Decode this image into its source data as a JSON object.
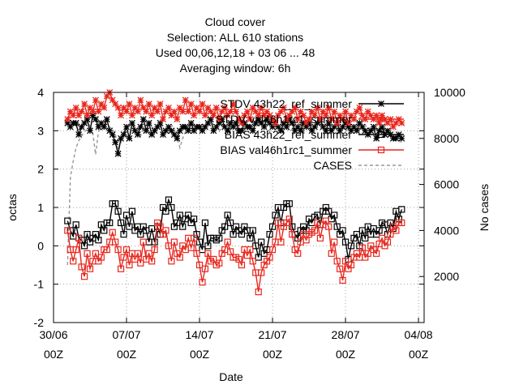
{
  "chart_data": {
    "type": "line",
    "title_lines": [
      "Cloud cover",
      "Selection: ALL    610 stations",
      "Used  00,06,12,18  + 03 06 ... 48",
      "Averaging window:  6h"
    ],
    "xlabel": "Date",
    "ylabel": "octas",
    "y2label": "No cases",
    "xlim": [
      0,
      33
    ],
    "ylim": [
      -2,
      4
    ],
    "y2lim": [
      0,
      10000
    ],
    "x_ticks": [
      {
        "value": 0,
        "line1": "30/06",
        "line2": "00Z"
      },
      {
        "value": 6.5,
        "line1": "07/07",
        "line2": "00Z"
      },
      {
        "value": 13,
        "line1": "14/07",
        "line2": "00Z"
      },
      {
        "value": 19.5,
        "line1": "21/07",
        "line2": "00Z"
      },
      {
        "value": 26,
        "line1": "28/07",
        "line2": "00Z"
      },
      {
        "value": 32.5,
        "line1": "04/08",
        "line2": "00Z"
      }
    ],
    "y_ticks": [
      "-2",
      "-1",
      "0",
      "1",
      "2",
      "3",
      "4"
    ],
    "y2_ticks": [
      "2000",
      "4000",
      "6000",
      "8000",
      "10000"
    ],
    "grid": true,
    "legend_position": "top-right",
    "x_day": [
      1.25,
      1.5,
      1.75,
      2.0,
      2.25,
      2.5,
      2.75,
      3.0,
      3.25,
      3.5,
      3.75,
      4.0,
      4.25,
      4.5,
      4.75,
      5.0,
      5.25,
      5.5,
      5.75,
      6.0,
      6.25,
      6.5,
      6.75,
      7.0,
      7.25,
      7.5,
      7.75,
      8.0,
      8.25,
      8.5,
      8.75,
      9.0,
      9.25,
      9.5,
      9.75,
      10.0,
      10.25,
      10.5,
      10.75,
      11.0,
      11.25,
      11.5,
      11.75,
      12.0,
      12.25,
      12.5,
      12.75,
      13.0,
      13.25,
      13.5,
      13.75,
      14.0,
      14.25,
      14.5,
      14.75,
      15.0,
      15.25,
      15.5,
      15.75,
      16.0,
      16.25,
      16.5,
      16.75,
      17.0,
      17.25,
      17.5,
      17.75,
      18.0,
      18.25,
      18.5,
      18.75,
      19.0,
      19.25,
      19.5,
      19.75,
      20.0,
      20.25,
      20.5,
      20.75,
      21.0,
      21.25,
      21.5,
      21.75,
      22.0,
      22.25,
      22.5,
      22.75,
      23.0,
      23.25,
      23.5,
      23.75,
      24.0,
      24.25,
      24.5,
      24.75,
      25.0,
      25.25,
      25.5,
      25.75,
      26.0,
      26.25,
      26.5,
      26.75,
      27.0,
      27.25,
      27.5,
      27.75,
      28.0,
      28.25,
      28.5,
      28.75,
      29.0,
      29.25,
      29.5,
      29.75,
      30.0,
      30.25,
      30.5,
      30.75,
      31.0
    ],
    "series": [
      {
        "name": "STDV 43h22_ref_summer",
        "color": "#000000",
        "marker": "star",
        "values": [
          3.2,
          3.1,
          3.2,
          3.2,
          2.9,
          3.1,
          3.2,
          3.3,
          3.0,
          3.4,
          3.3,
          3.1,
          3.2,
          3.1,
          3.3,
          3.0,
          2.9,
          2.7,
          2.4,
          2.8,
          2.9,
          3.1,
          2.8,
          3.2,
          3.0,
          2.9,
          3.1,
          3.3,
          3.0,
          3.2,
          2.9,
          3.0,
          3.1,
          3.2,
          2.9,
          3.0,
          3.1,
          3.0,
          2.9,
          2.8,
          3.0,
          3.1,
          3.1,
          3.0,
          3.2,
          3.0,
          3.1,
          3.1,
          3.0,
          3.1,
          3.2,
          3.3,
          3.0,
          3.1,
          3.2,
          3.3,
          3.1,
          3.0,
          3.2,
          3.1,
          3.2,
          3.0,
          3.0,
          3.2,
          3.1,
          3.1,
          3.0,
          3.2,
          3.3,
          3.2,
          3.1,
          3.3,
          3.2,
          3.1,
          3.2,
          3.1,
          3.0,
          3.2,
          3.1,
          3.3,
          3.2,
          3.0,
          3.1,
          3.0,
          3.2,
          3.1,
          3.2,
          3.0,
          3.1,
          3.2,
          3.3,
          3.1,
          3.0,
          3.2,
          3.0,
          3.1,
          3.2,
          3.0,
          3.1,
          3.2,
          3.1,
          3.0,
          3.1,
          3.0,
          3.2,
          3.1,
          3.0,
          2.9,
          3.0,
          3.1,
          2.8,
          3.0,
          3.1,
          2.9,
          3.0,
          2.9,
          2.8,
          2.8,
          2.9,
          2.8
        ]
      },
      {
        "name": "STDV val46h1rc1_summer",
        "color": "#e8261d",
        "marker": "star",
        "values": [
          3.3,
          3.5,
          3.4,
          3.6,
          3.4,
          3.5,
          3.7,
          3.4,
          3.6,
          3.5,
          3.8,
          3.5,
          3.7,
          3.6,
          3.9,
          4.0,
          3.8,
          3.7,
          3.6,
          3.4,
          3.6,
          3.5,
          3.7,
          3.4,
          3.6,
          3.5,
          3.8,
          3.6,
          3.5,
          3.7,
          3.4,
          3.6,
          3.5,
          3.7,
          3.3,
          3.5,
          3.6,
          3.4,
          3.5,
          3.3,
          3.6,
          3.5,
          3.8,
          3.5,
          3.7,
          3.4,
          3.6,
          3.5,
          3.7,
          3.4,
          3.6,
          3.5,
          3.4,
          3.6,
          3.3,
          3.5,
          3.6,
          3.4,
          3.5,
          3.7,
          3.5,
          3.3,
          3.2,
          3.4,
          3.5,
          3.3,
          3.6,
          3.5,
          3.4,
          3.6,
          3.4,
          3.5,
          3.4,
          3.3,
          3.2,
          3.4,
          3.5,
          3.6,
          3.3,
          3.4,
          3.5,
          3.6,
          3.3,
          3.5,
          3.4,
          3.2,
          3.3,
          3.5,
          3.4,
          3.6,
          3.3,
          3.5,
          3.4,
          3.6,
          3.3,
          3.5,
          3.2,
          3.4,
          3.3,
          3.5,
          3.2,
          3.4,
          3.3,
          3.5,
          3.6,
          3.4,
          3.3,
          3.5,
          3.4,
          3.3,
          3.4,
          3.2,
          3.4,
          3.3,
          3.2,
          3.3,
          3.1,
          3.2,
          3.3,
          3.2
        ]
      },
      {
        "name": "BIAS 43h22_ref_summer",
        "color": "#000000",
        "marker": "square",
        "values": [
          0.65,
          0.4,
          0.25,
          0.55,
          0.2,
          0.15,
          0.0,
          0.3,
          0.1,
          0.2,
          0.3,
          0.15,
          0.55,
          0.4,
          0.6,
          0.6,
          1.1,
          1.1,
          0.9,
          0.6,
          0.3,
          0.8,
          0.5,
          0.9,
          0.4,
          0.5,
          0.3,
          0.5,
          0.4,
          0.1,
          0.45,
          0.1,
          0.5,
          0.3,
          1.0,
          0.9,
          1.2,
          1.0,
          0.5,
          0.6,
          0.8,
          0.5,
          0.7,
          0.8,
          0.6,
          0.7,
          0.3,
          0.1,
          -0.1,
          0.6,
          0.0,
          0.2,
          0.2,
          0.15,
          0.2,
          0.4,
          0.5,
          0.8,
          0.6,
          0.3,
          0.5,
          0.4,
          0.3,
          0.5,
          0.4,
          0.2,
          0.4,
          0.0,
          -0.3,
          0.1,
          -0.2,
          -0.1,
          0.3,
          0.5,
          0.8,
          1.0,
          0.6,
          1.0,
          1.1,
          1.1,
          0.5,
          0.3,
          0.2,
          0.4,
          0.5,
          0.4,
          0.7,
          0.6,
          0.75,
          0.8,
          0.55,
          0.9,
          1.0,
          0.9,
          0.7,
          0.8,
          0.5,
          0.3,
          0.4,
          0.1,
          -0.35,
          0.0,
          0.2,
          0.3,
          0.0,
          0.4,
          0.2,
          0.5,
          0.3,
          0.45,
          0.3,
          0.4,
          0.6,
          0.55,
          0.3,
          0.6,
          0.45,
          0.9,
          0.7,
          0.95
        ]
      },
      {
        "name": "BIAS val46h1rc1_summer",
        "color": "#e8261d",
        "marker": "square",
        "values": [
          0.4,
          -0.1,
          -0.4,
          -0.1,
          0.2,
          -0.55,
          -0.8,
          -0.2,
          -0.6,
          -0.4,
          -0.2,
          -0.4,
          -0.3,
          -0.1,
          -0.1,
          0.1,
          0.35,
          0.1,
          -0.1,
          -0.6,
          -0.3,
          -0.1,
          -0.5,
          -0.2,
          -0.35,
          -0.2,
          -0.45,
          0.1,
          -0.35,
          -0.2,
          -0.4,
          -0.1,
          0.6,
          0.5,
          0.3,
          0.4,
          0.0,
          -0.4,
          0.1,
          -0.2,
          -0.3,
          0.0,
          -0.1,
          0.2,
          -0.05,
          0.2,
          -0.2,
          -0.5,
          -0.95,
          -0.6,
          -0.2,
          -0.4,
          -0.35,
          -0.5,
          -0.45,
          -0.2,
          -0.1,
          0.1,
          -0.15,
          -0.3,
          -0.3,
          -0.35,
          -0.5,
          -0.1,
          -0.25,
          -0.1,
          -0.4,
          -0.7,
          -1.2,
          -0.7,
          -0.5,
          -0.4,
          -0.3,
          -0.1,
          0.1,
          0.6,
          0.1,
          0.5,
          0.6,
          0.7,
          0.3,
          -0.1,
          -0.2,
          0.1,
          0.3,
          0.15,
          0.3,
          0.35,
          0.4,
          0.6,
          0.2,
          0.55,
          0.65,
          0.5,
          -0.2,
          0.1,
          -0.4,
          -0.6,
          -0.9,
          -0.4,
          -0.6,
          -0.5,
          -0.3,
          -0.2,
          -0.3,
          -0.05,
          -0.3,
          -0.2,
          0.0,
          -0.1,
          -0.2,
          0.05,
          0.2,
          0.0,
          0.1,
          0.3,
          0.5,
          0.4,
          0.6,
          0.6
        ]
      },
      {
        "name": "CASES",
        "color": "#999999",
        "marker": "none",
        "axis": "y2",
        "values": [
          2500,
          6300,
          7000,
          7600,
          7900,
          8100,
          8300,
          8400,
          8600,
          8200,
          7300,
          8300,
          8500,
          8700,
          8600,
          8500,
          8400,
          8200,
          7500,
          7800,
          8300,
          8400,
          8600,
          8700,
          8500,
          8300,
          8100,
          8400,
          8600,
          8700,
          8500,
          8400,
          8600,
          8500,
          8400,
          8300,
          8500,
          8600,
          8400,
          8100,
          7600,
          8000,
          8300,
          8500,
          8700,
          8600,
          8400,
          8500,
          8600,
          8400,
          8500,
          8700,
          8600,
          8400,
          8300,
          8500,
          8600,
          8700,
          8500,
          8400,
          8600,
          8500,
          8300,
          8400,
          8500,
          8600,
          8400,
          8500,
          8600,
          8700,
          8500,
          8400,
          8300,
          8500,
          8600,
          8400,
          8500,
          8600,
          8500,
          8300,
          8400,
          8600,
          8700,
          8500,
          8400,
          8500,
          8600,
          8400,
          8300,
          8500,
          8600,
          8700,
          8500,
          8400,
          8300,
          8500,
          8600,
          8400,
          8500,
          8300,
          8400,
          8600,
          8500,
          8400,
          8300,
          8500,
          8600,
          8400,
          8500,
          8300,
          8400,
          8500,
          8300,
          8400,
          8200,
          8300,
          8100,
          8200,
          8000,
          7800
        ]
      }
    ]
  },
  "legend": [
    {
      "label": "STDV 43h22_ref_summer",
      "color": "#000000",
      "marker": "star",
      "dash": false
    },
    {
      "label": "STDV val46h1rc1_summer",
      "color": "#e8261d",
      "marker": "star",
      "dash": false
    },
    {
      "label": "BIAS 43h22_ref_summer",
      "color": "#000000",
      "marker": "square",
      "dash": false
    },
    {
      "label": "BIAS val46h1rc1_summer",
      "color": "#e8261d",
      "marker": "square",
      "dash": false
    },
    {
      "label": "CASES",
      "color": "#999999",
      "marker": "none",
      "dash": true
    }
  ]
}
